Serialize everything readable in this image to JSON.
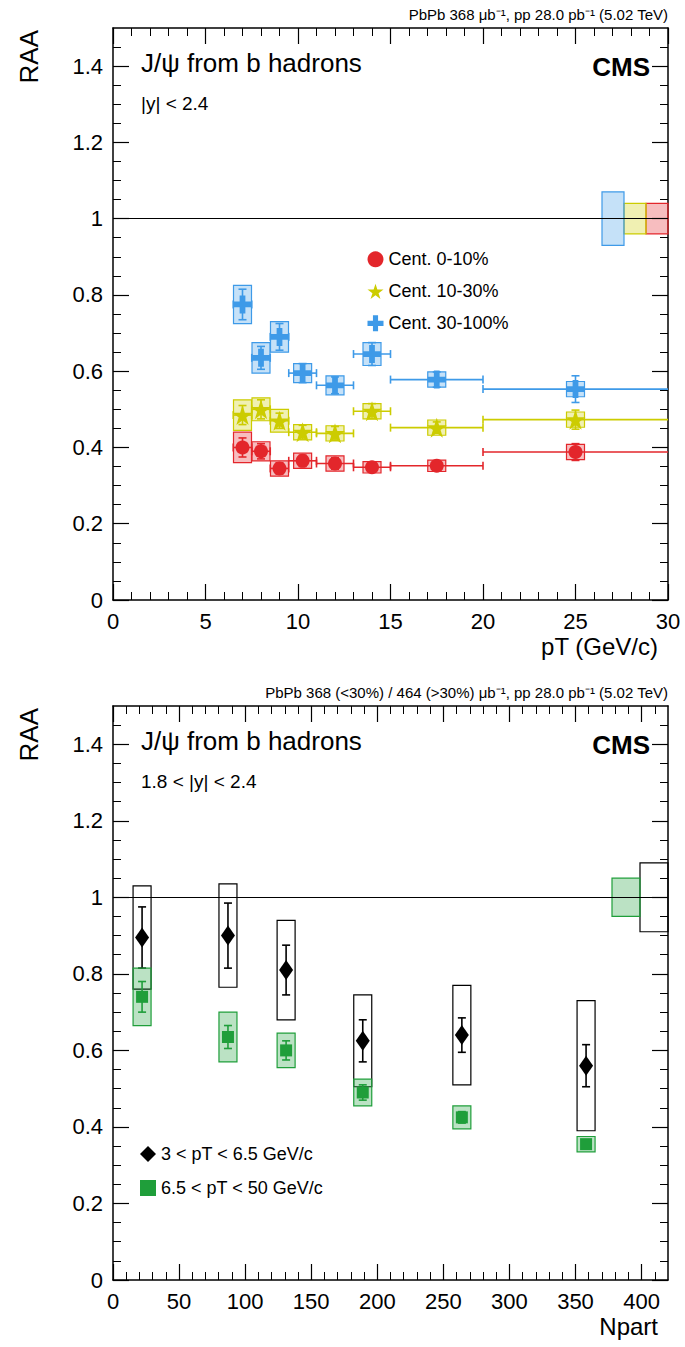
{
  "chart_data": [
    {
      "type": "scatter",
      "title": "J/ψ from b hadrons",
      "subtitle": "PbPb 368 μb⁻¹, pp 28.0 pb⁻¹ (5.02 TeV)",
      "annotations": [
        "|y| < 2.4",
        "CMS"
      ],
      "xlabel": "pT (GeV/c)",
      "ylabel": "RAA",
      "xlim": [
        0,
        30
      ],
      "ylim": [
        0,
        1.5
      ],
      "xticks": [
        0,
        5,
        10,
        15,
        20,
        25,
        30
      ],
      "yticks": [
        0,
        0.2,
        0.4,
        0.6,
        0.8,
        1,
        1.2,
        1.4
      ],
      "reference_line": 1,
      "grid": false,
      "legend": "right",
      "series": [
        {
          "name": "Cent. 0-10%",
          "color": "#e3262b",
          "marker": "circle",
          "x": [
            7,
            8,
            9,
            10.25,
            12,
            14,
            17.5,
            25
          ],
          "x_low": [
            6.5,
            7.5,
            8.5,
            9.5,
            11,
            13,
            15,
            20
          ],
          "x_high": [
            7.5,
            8.5,
            9.5,
            11,
            13,
            15,
            20,
            50
          ],
          "values": [
            0.4,
            0.39,
            0.345,
            0.365,
            0.358,
            0.348,
            0.352,
            0.388
          ],
          "stat_err": [
            0.025,
            0.02,
            0.015,
            0.015,
            0.015,
            0.012,
            0.012,
            0.022
          ],
          "syst_err": [
            0.04,
            0.025,
            0.02,
            0.02,
            0.02,
            0.015,
            0.015,
            0.02
          ],
          "global_err": 0.04
        },
        {
          "name": "Cent. 10-30%",
          "color": "#cccc00",
          "marker": "star",
          "x": [
            7,
            8,
            9,
            10.25,
            12,
            14,
            17.5,
            25
          ],
          "x_low": [
            6.5,
            7.5,
            8.5,
            9.5,
            11,
            13,
            15,
            20
          ],
          "x_high": [
            7.5,
            8.5,
            9.5,
            11,
            13,
            15,
            20,
            50
          ],
          "values": [
            0.485,
            0.5,
            0.47,
            0.44,
            0.437,
            0.495,
            0.452,
            0.473
          ],
          "stat_err": [
            0.025,
            0.025,
            0.02,
            0.018,
            0.018,
            0.02,
            0.015,
            0.025
          ],
          "syst_err": [
            0.04,
            0.03,
            0.03,
            0.02,
            0.02,
            0.02,
            0.02,
            0.02
          ],
          "global_err": 0.04
        },
        {
          "name": "Cent. 30-100%",
          "color": "#3e9ae8",
          "marker": "cross",
          "x": [
            7,
            8,
            9,
            10.25,
            12,
            14,
            17.5,
            25
          ],
          "x_low": [
            6.5,
            7.5,
            8.5,
            9.5,
            11,
            13,
            15,
            20
          ],
          "x_high": [
            7.5,
            8.5,
            9.5,
            11,
            13,
            15,
            20,
            50
          ],
          "values": [
            0.775,
            0.635,
            0.69,
            0.595,
            0.563,
            0.645,
            0.578,
            0.553
          ],
          "stat_err": [
            0.04,
            0.03,
            0.035,
            0.025,
            0.022,
            0.03,
            0.02,
            0.035
          ],
          "syst_err": [
            0.05,
            0.04,
            0.04,
            0.025,
            0.025,
            0.03,
            0.02,
            0.02
          ],
          "global_err": 0.07
        }
      ]
    },
    {
      "type": "scatter",
      "title": "J/ψ from b hadrons",
      "subtitle": "PbPb 368 (<30%) / 464 (>30%) μb⁻¹, pp 28.0 pb⁻¹ (5.02 TeV)",
      "annotations": [
        "1.8 < |y| < 2.4",
        "CMS"
      ],
      "xlabel": "Npart",
      "ylabel": "RAA",
      "xlim": [
        0,
        420
      ],
      "ylim": [
        0,
        1.5
      ],
      "xticks": [
        0,
        50,
        100,
        150,
        200,
        250,
        300,
        350,
        400
      ],
      "yticks": [
        0,
        0.2,
        0.4,
        0.6,
        0.8,
        1,
        1.2,
        1.4
      ],
      "reference_line": 1,
      "grid": false,
      "legend": "lower left",
      "series": [
        {
          "name": "3 < pT < 6.5 GeV/c",
          "color": "#000000",
          "marker": "diamond",
          "x": [
            22,
            87,
            131,
            189,
            264,
            358
          ],
          "values": [
            0.895,
            0.9,
            0.81,
            0.625,
            0.64,
            0.56
          ],
          "stat_err": [
            0.08,
            0.085,
            0.065,
            0.055,
            0.045,
            0.055
          ],
          "syst_err": [
            0.135,
            0.135,
            0.13,
            0.12,
            0.13,
            0.17
          ],
          "global_err": 0.09
        },
        {
          "name": "6.5 < pT < 50 GeV/c",
          "color": "#1f9e3a",
          "marker": "square",
          "x": [
            22,
            87,
            131,
            189,
            264,
            358
          ],
          "values": [
            0.74,
            0.635,
            0.6,
            0.49,
            0.425,
            0.355
          ],
          "stat_err": [
            0.04,
            0.03,
            0.025,
            0.02,
            0.015,
            0.01
          ],
          "syst_err": [
            0.075,
            0.065,
            0.045,
            0.035,
            0.03,
            0.02
          ],
          "global_err": 0.05
        }
      ]
    }
  ]
}
